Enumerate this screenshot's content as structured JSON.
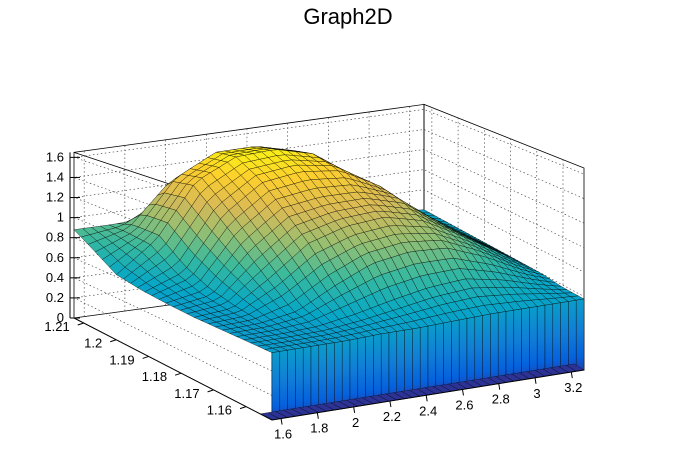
{
  "window": {
    "title": "Graph2D"
  },
  "chart_data": {
    "type": "surface",
    "title": "Graph2D",
    "xlabel": "",
    "ylabel": "",
    "zlabel": "",
    "x_range": [
      1.55,
      3.27
    ],
    "y_range": [
      1.152,
      1.213
    ],
    "z_range": [
      0,
      1.65
    ],
    "x_ticks": [
      "1.6",
      "1.8",
      "2",
      "2.2",
      "2.4",
      "2.6",
      "2.8",
      "3",
      "3.2"
    ],
    "y_ticks": [
      "1.16",
      "1.17",
      "1.18",
      "1.19",
      "1.2",
      "1.21"
    ],
    "z_ticks": [
      "0",
      "0.2",
      "0.4",
      "0.6",
      "0.8",
      "1",
      "1.2",
      "1.4",
      "1.6"
    ],
    "grid": true,
    "palette": [
      "#352a87",
      "#0363e1",
      "#1485d4",
      "#06a7c6",
      "#38b99e",
      "#92bf73",
      "#d9ba56",
      "#fcce2e",
      "#f9fb0e"
    ],
    "surface_x": [
      1.55,
      1.75,
      1.95,
      2.15,
      2.35,
      2.55,
      2.75,
      2.95,
      3.15,
      3.27
    ],
    "surface_y": [
      1.152,
      1.16,
      1.168,
      1.176,
      1.184,
      1.192,
      1.2,
      1.208,
      1.213
    ],
    "surface_z": [
      [
        0.55,
        0.55,
        0.55,
        0.56,
        0.56,
        0.57,
        0.58,
        0.58,
        0.58,
        0.58
      ],
      [
        0.55,
        0.55,
        0.56,
        0.6,
        0.66,
        0.72,
        0.75,
        0.7,
        0.62,
        0.58
      ],
      [
        0.55,
        0.56,
        0.62,
        0.8,
        0.95,
        1.0,
        0.98,
        0.85,
        0.68,
        0.6
      ],
      [
        0.55,
        0.58,
        0.8,
        1.05,
        1.15,
        1.18,
        1.1,
        0.92,
        0.72,
        0.6
      ],
      [
        0.56,
        0.62,
        1.0,
        1.25,
        1.3,
        1.3,
        1.2,
        0.95,
        0.72,
        0.6
      ],
      [
        0.58,
        0.72,
        1.2,
        1.45,
        1.5,
        1.45,
        1.25,
        0.9,
        0.7,
        0.6
      ],
      [
        0.62,
        0.9,
        1.4,
        1.58,
        1.6,
        1.5,
        1.2,
        0.85,
        0.68,
        0.6
      ],
      [
        0.78,
        0.9,
        1.35,
        1.55,
        1.55,
        1.45,
        1.15,
        0.8,
        0.65,
        0.6
      ],
      [
        0.88,
        0.88,
        0.9,
        0.95,
        1.0,
        0.95,
        0.85,
        0.7,
        0.62,
        0.6
      ]
    ]
  }
}
